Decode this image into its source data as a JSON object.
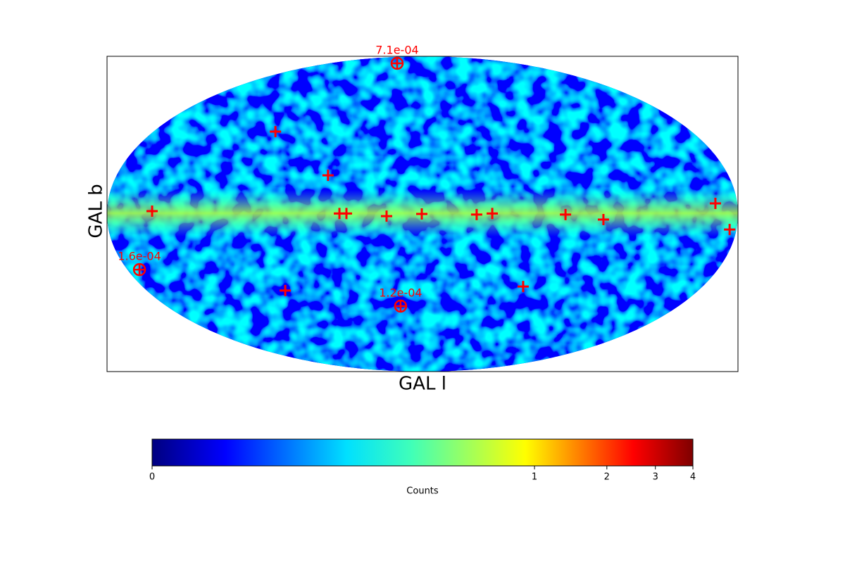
{
  "chart_data": {
    "type": "skymap",
    "projection": "mollweide",
    "xlabel": "GAL l",
    "ylabel": "GAL b",
    "markers": {
      "color": "#ff0000",
      "lon": [
        98.4,
        55.6,
        154.3,
        47.4,
        43.4,
        20.5,
        0.4,
        -30.9,
        -39.8,
        -81.6,
        -103.3,
        -167.5,
        -176.1,
        89.6,
        -64.7
      ],
      "lat": [
        39.3,
        18.0,
        1.3,
        0.2,
        0.2,
        -1.0,
        0.0,
        -0.3,
        0.2,
        -0.3,
        -2.6,
        4.9,
        -7.2,
        -36.4,
        -34.4
      ]
    },
    "sources": {
      "color": "#ff0000",
      "lon": [
        49.0,
        15.4,
        172.6
      ],
      "lat": [
        81.4,
        -44.4,
        -26.1
      ],
      "labels": [
        "7.1e-04",
        "1.2e-04",
        "1.6e-04"
      ]
    },
    "colorbar": {
      "label": "Counts",
      "lim": [
        0,
        4
      ],
      "ticks": [
        0,
        1,
        2,
        3,
        4
      ],
      "scale": "power",
      "exponent": 0.25
    }
  }
}
